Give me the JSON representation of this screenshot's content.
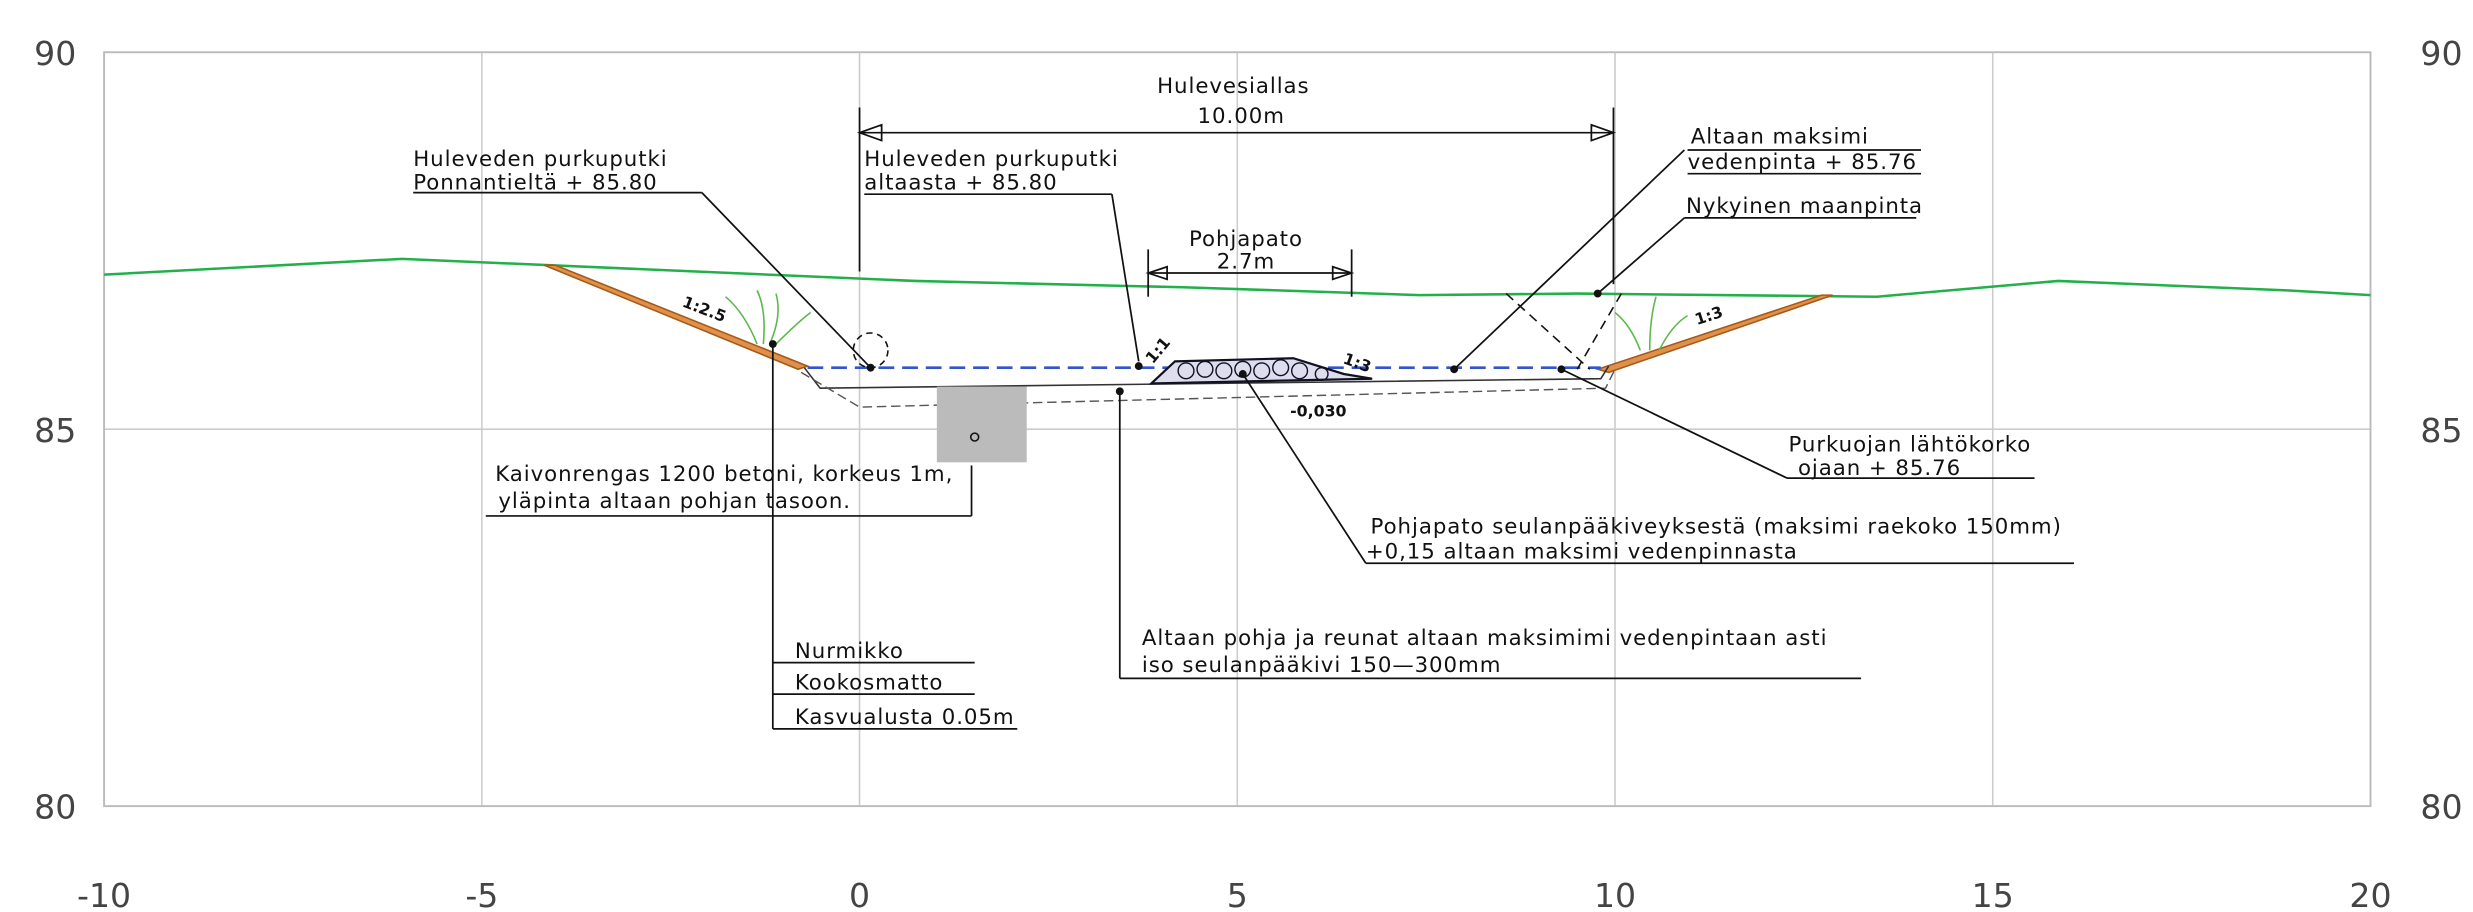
{
  "axes": {
    "xlim": [
      -10,
      20
    ],
    "ylim": [
      80,
      90
    ],
    "xticks": [
      -10,
      -5,
      0,
      5,
      10,
      15,
      20
    ],
    "yticks": [
      80,
      85,
      90
    ]
  },
  "annotations": {
    "basin": [
      "Hulevesiallas",
      "10.00m"
    ],
    "inlet_left": [
      "Huleveden purkuputki",
      "Ponnantieltä + 85.80"
    ],
    "inlet_basin": [
      "Huleveden purkuputki",
      "altaasta + 85.80"
    ],
    "dam": [
      "Pohjapato",
      "2.7m"
    ],
    "max_water": [
      "Altaan maksimi",
      "vedenpinta + 85.76"
    ],
    "ground": [
      "Nykyinen maanpinta"
    ],
    "outlet": [
      "Purkuojan lähtökorko",
      "ojaan + 85.76"
    ],
    "well": [
      "Kaivonrengas 1200 betoni, korkeus 1m,",
      "yläpinta altaan pohjan tasoon."
    ],
    "dam_material": [
      "Pohjapato seulanpääkiveyksestä (maksimi raekoko 150mm)",
      "+0,15 altaan maksimi vedenpinnasta"
    ],
    "bottom": [
      "Altaan pohja ja reunat altaan maksimimi vedenpintaan asti",
      "iso seulanpääkivi 150—300mm"
    ],
    "layers": [
      "Nurmikko",
      "Kookosmatto",
      "Kasvualusta 0.05m"
    ],
    "slopes": [
      "1:2.5",
      "1:1",
      "1:3",
      "1:3"
    ],
    "gradient": "-0,030"
  }
}
